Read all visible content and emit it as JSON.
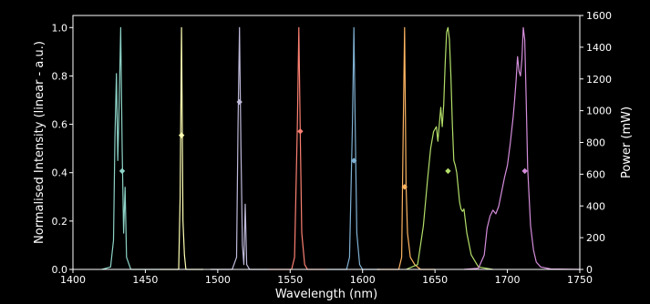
{
  "chart_data": {
    "type": "line",
    "title": "",
    "xlabel": "Wavelength (nm)",
    "ylabel": "Normalised Intensity (linear - a.u.)",
    "y2label": "Power (mW)",
    "xlim": [
      1400,
      1750
    ],
    "ylim": [
      0,
      1.05
    ],
    "y2lim": [
      0,
      1600
    ],
    "xticks": [
      1400,
      1450,
      1500,
      1550,
      1600,
      1650,
      1700,
      1750
    ],
    "yticks": [
      0.0,
      0.2,
      0.4,
      0.6,
      0.8,
      1.0
    ],
    "y2ticks": [
      0,
      200,
      400,
      600,
      800,
      1000,
      1200,
      1400,
      1600
    ],
    "xtick_labels": [
      "1400",
      "1450",
      "1500",
      "1550",
      "1600",
      "1650",
      "1700",
      "1750"
    ],
    "ytick_labels": [
      "0.0",
      "0.2",
      "0.4",
      "0.6",
      "0.8",
      "1.0"
    ],
    "y2tick_labels": [
      "0",
      "200",
      "400",
      "600",
      "800",
      "1000",
      "1200",
      "1400",
      "1600"
    ],
    "grid": false,
    "background": "#000000",
    "axis_color": "#ffffff",
    "series": [
      {
        "color": "#8dd3c7",
        "x": [
          1420,
          1426,
          1428,
          1429,
          1430,
          1431,
          1432,
          1433,
          1434,
          1435,
          1436,
          1437,
          1440,
          1460
        ],
        "y": [
          0,
          0.01,
          0.12,
          0.55,
          0.81,
          0.45,
          0.7,
          1.0,
          0.5,
          0.15,
          0.34,
          0.05,
          0.0,
          0
        ],
        "marker": {
          "x": 1434,
          "power": 620
        }
      },
      {
        "color": "#ffffb3",
        "x": [
          1460,
          1473,
          1474,
          1475,
          1476,
          1477,
          1478,
          1480,
          1490
        ],
        "y": [
          0,
          0.0,
          0.3,
          1.0,
          0.2,
          0.06,
          0.0,
          0.0,
          0
        ],
        "marker": {
          "x": 1475,
          "power": 845
        }
      },
      {
        "color": "#bebada",
        "x": [
          1495,
          1510,
          1513,
          1514,
          1515,
          1516,
          1517,
          1518,
          1519,
          1520,
          1522,
          1535
        ],
        "y": [
          0,
          0.0,
          0.05,
          0.6,
          1.0,
          0.5,
          0.1,
          0.02,
          0.27,
          0.02,
          0.0,
          0
        ],
        "marker": {
          "x": 1515,
          "power": 1055
        }
      },
      {
        "color": "#fb8072",
        "x": [
          1535,
          1551,
          1553,
          1555,
          1556,
          1557,
          1558,
          1560,
          1562,
          1575
        ],
        "y": [
          0,
          0.0,
          0.05,
          0.6,
          1.0,
          0.55,
          0.15,
          0.02,
          0.0,
          0
        ],
        "marker": {
          "x": 1557,
          "power": 870
        }
      },
      {
        "color": "#80b1d3",
        "x": [
          1575,
          1589,
          1591,
          1593,
          1594,
          1595,
          1596,
          1598,
          1600,
          1612
        ],
        "y": [
          0,
          0.0,
          0.05,
          0.6,
          1.0,
          0.55,
          0.15,
          0.02,
          0.0,
          0
        ],
        "marker": {
          "x": 1594,
          "power": 685
        }
      },
      {
        "color": "#fdb462",
        "x": [
          1610,
          1625,
          1627,
          1628,
          1629,
          1630,
          1631,
          1633,
          1636,
          1640,
          1650
        ],
        "y": [
          0,
          0.0,
          0.05,
          0.55,
          1.0,
          0.35,
          0.15,
          0.05,
          0.02,
          0.0,
          0
        ],
        "marker": {
          "x": 1629,
          "power": 520
        }
      },
      {
        "color": "#b3de69",
        "x": [
          1630,
          1638,
          1642,
          1645,
          1647,
          1649,
          1651,
          1652,
          1653,
          1654,
          1655,
          1656,
          1657,
          1658,
          1659,
          1660,
          1661,
          1662,
          1663,
          1664,
          1665,
          1667,
          1668,
          1669,
          1670,
          1672,
          1675,
          1680,
          1690
        ],
        "y": [
          0,
          0.02,
          0.18,
          0.38,
          0.5,
          0.57,
          0.59,
          0.53,
          0.6,
          0.67,
          0.59,
          0.68,
          0.85,
          0.98,
          1.0,
          0.95,
          0.8,
          0.6,
          0.45,
          0.43,
          0.4,
          0.28,
          0.25,
          0.24,
          0.25,
          0.15,
          0.06,
          0.01,
          0
        ],
        "marker": {
          "x": 1659,
          "power": 620
        }
      },
      {
        "color": "#d48ddb",
        "x": [
          1670,
          1680,
          1684,
          1686,
          1688,
          1690,
          1692,
          1694,
          1696,
          1698,
          1700,
          1702,
          1704,
          1705,
          1706,
          1707,
          1708,
          1709,
          1710,
          1711,
          1712,
          1713,
          1714,
          1715,
          1716,
          1718,
          1720,
          1723,
          1730,
          1750
        ],
        "y": [
          0,
          0.005,
          0.06,
          0.17,
          0.22,
          0.245,
          0.23,
          0.26,
          0.32,
          0.38,
          0.43,
          0.52,
          0.63,
          0.7,
          0.78,
          0.88,
          0.82,
          0.8,
          0.87,
          1.0,
          0.95,
          0.7,
          0.42,
          0.3,
          0.18,
          0.08,
          0.03,
          0.01,
          0.002,
          0
        ],
        "marker": {
          "x": 1712,
          "power": 620
        }
      }
    ]
  }
}
